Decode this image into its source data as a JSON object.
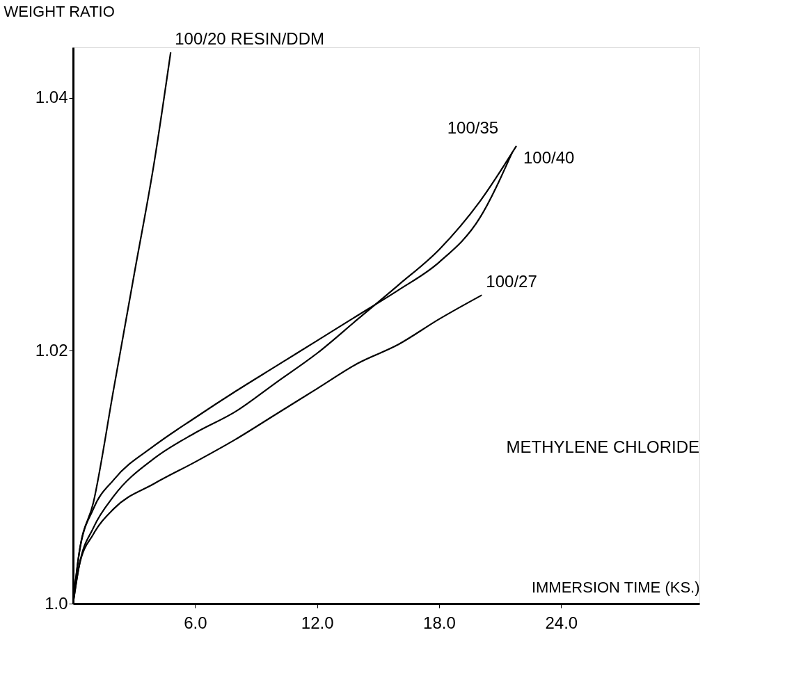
{
  "chart_data": {
    "type": "line",
    "xlabel": "IMMERSION TIME (KS.)",
    "ylabel": "WEIGHT RATIO",
    "xlim": [
      0,
      30.8
    ],
    "ylim": [
      1.0,
      1.044
    ],
    "xticks": [
      {
        "value": 6,
        "label": "6.0"
      },
      {
        "value": 12,
        "label": "12.0"
      },
      {
        "value": 18,
        "label": "18.0"
      },
      {
        "value": 24,
        "label": "24.0"
      }
    ],
    "yticks": [
      {
        "value": 1.0,
        "label": "1.0"
      },
      1.02,
      1.04
    ],
    "grid": false,
    "marker": "none",
    "line_style": "solid",
    "series": [
      {
        "name": "100/20 RESIN/DDM",
        "color": "#000000",
        "x": [
          0,
          0.3,
          1,
          2,
          3,
          4,
          4.8
        ],
        "values": [
          1.0,
          1.004,
          1.008,
          1.017,
          1.026,
          1.035,
          1.0436
        ]
      },
      {
        "name": "100/35",
        "color": "#000000",
        "x": [
          0,
          0.3,
          1,
          2,
          4,
          6,
          8,
          10,
          12,
          14,
          16,
          18,
          20,
          21.6
        ],
        "values": [
          1.0,
          1.004,
          1.0075,
          1.0098,
          1.0125,
          1.0147,
          1.0168,
          1.0188,
          1.0208,
          1.0228,
          1.0248,
          1.027,
          1.0305,
          1.0357
        ]
      },
      {
        "name": "100/40",
        "color": "#000000",
        "x": [
          0,
          0.3,
          1,
          2,
          4,
          6,
          8,
          10,
          12,
          14,
          16,
          18,
          20,
          21.8
        ],
        "values": [
          1.0,
          1.003,
          1.006,
          1.0085,
          1.0115,
          1.0135,
          1.0152,
          1.0175,
          1.0198,
          1.0225,
          1.0252,
          1.028,
          1.0318,
          1.0362
        ]
      },
      {
        "name": "100/27",
        "color": "#000000",
        "x": [
          0,
          0.3,
          1,
          2,
          4,
          6,
          8,
          10,
          12,
          14,
          16,
          18,
          20.1
        ],
        "values": [
          1.0,
          1.003,
          1.0055,
          1.0075,
          1.0095,
          1.0112,
          1.013,
          1.015,
          1.017,
          1.019,
          1.0205,
          1.0225,
          1.0244
        ]
      }
    ],
    "annotations": [
      "METHYLENE CHLORIDE"
    ]
  }
}
